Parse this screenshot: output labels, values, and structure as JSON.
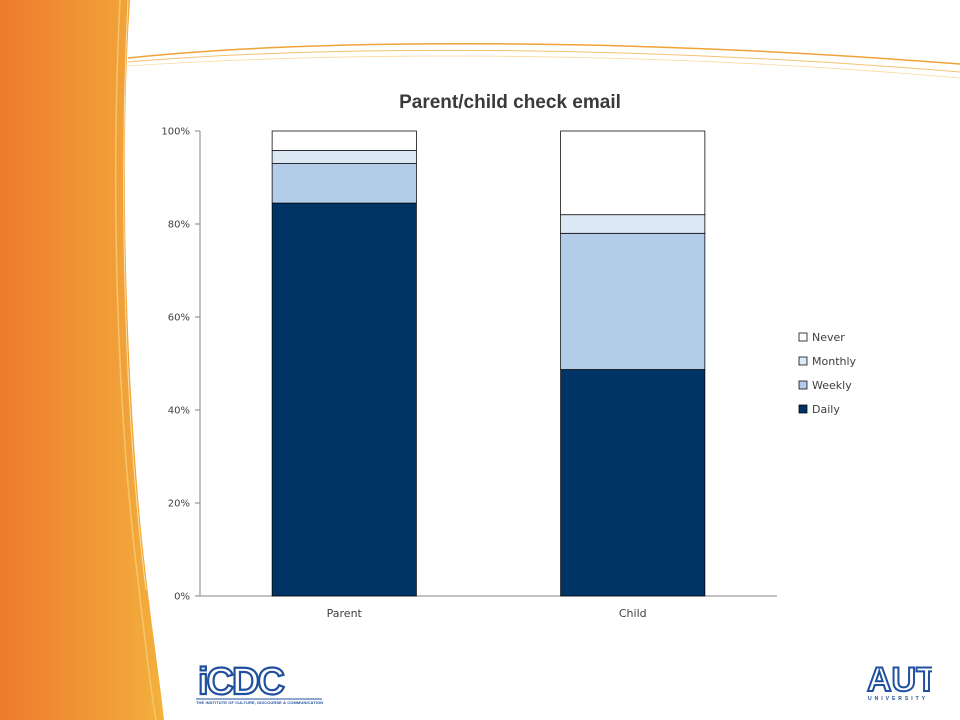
{
  "chart_data": {
    "type": "bar",
    "stacked": true,
    "title": "Parent/child check email",
    "categories": [
      "Parent",
      "Child"
    ],
    "series": [
      {
        "name": "Daily",
        "values": [
          84.5,
          48.7
        ],
        "color": "#003366"
      },
      {
        "name": "Weekly",
        "values": [
          8.5,
          29.3
        ],
        "color": "#b3cde9"
      },
      {
        "name": "Monthly",
        "values": [
          2.8,
          4.0
        ],
        "color": "#dde8f5"
      },
      {
        "name": "Never",
        "values": [
          4.2,
          18.0
        ],
        "color": "#ffffff"
      }
    ],
    "ylim": [
      0,
      100
    ],
    "yticks": [
      "0%",
      "20%",
      "40%",
      "60%",
      "80%",
      "100%"
    ],
    "legend_order": [
      "Never",
      "Monthly",
      "Weekly",
      "Daily"
    ],
    "legend_position": "right",
    "grid": false
  },
  "logos": {
    "icdc": {
      "text": "iCDC",
      "tagline": "THE INSTITUTE OF CULTURE, DISCOURSE & COMMUNICATION"
    },
    "aut": {
      "text": "AUT",
      "subtitle": "UNIVERSITY"
    }
  },
  "colors": {
    "accent_orange": "#ee7a2c",
    "accent_gold": "#f2b233",
    "brand_blue": "#1f4f9e"
  }
}
